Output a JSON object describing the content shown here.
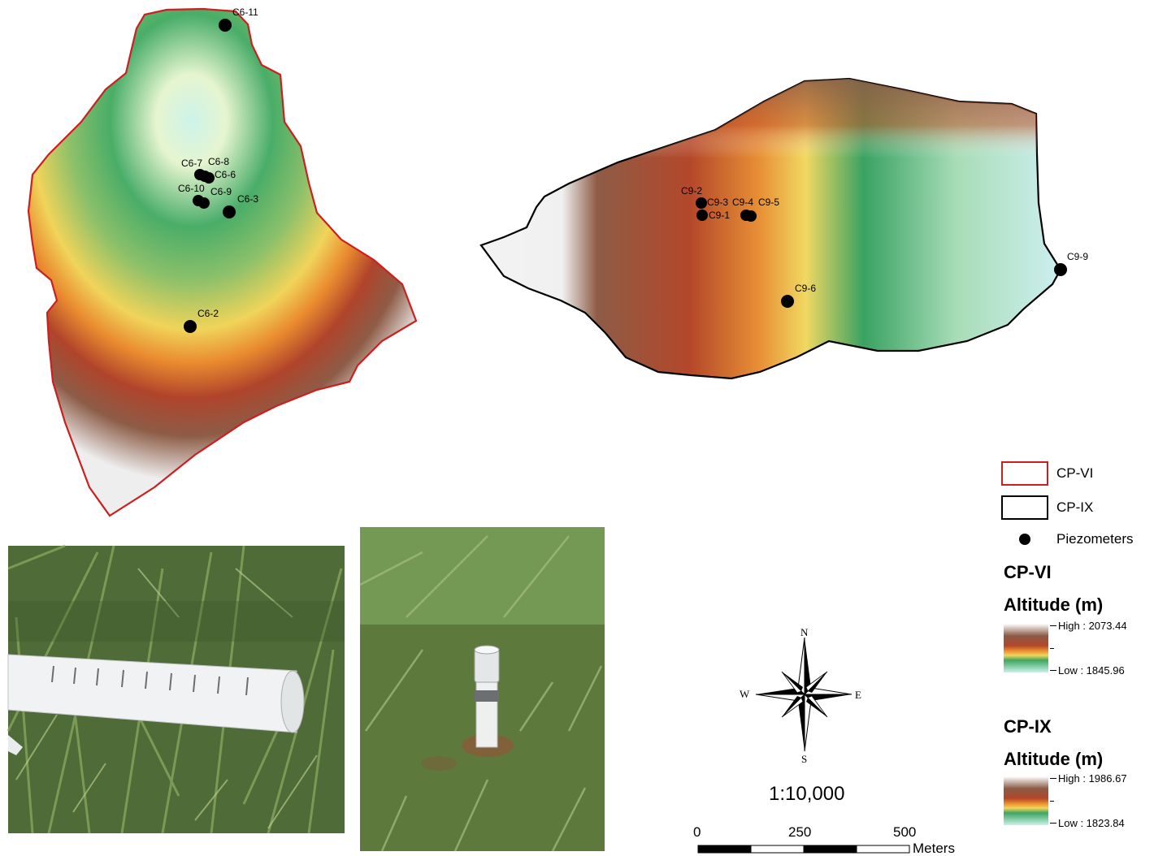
{
  "map": {
    "cp6_points": [
      {
        "id": "C6-11",
        "label": "C6-11"
      },
      {
        "id": "C6-7",
        "label": "C6-7"
      },
      {
        "id": "C6-8",
        "label": "C6-8"
      },
      {
        "id": "C6-6",
        "label": "C6-6"
      },
      {
        "id": "C6-10",
        "label": "C6-10"
      },
      {
        "id": "C6-9",
        "label": "C6-9"
      },
      {
        "id": "C6-3",
        "label": "C6-3"
      },
      {
        "id": "C6-2",
        "label": "C6-2"
      }
    ],
    "cp9_points": [
      {
        "id": "C9-2",
        "label": "C9-2"
      },
      {
        "id": "C9-3",
        "label": "C9-3"
      },
      {
        "id": "C9-4",
        "label": "C9-4"
      },
      {
        "id": "C9-5",
        "label": "C9-5"
      },
      {
        "id": "C9-1",
        "label": "C9-1"
      },
      {
        "id": "C9-6",
        "label": "C9-6"
      },
      {
        "id": "C9-9",
        "label": "C9-9"
      }
    ],
    "colors": {
      "cp6_outline": "#cc1f1f",
      "cp9_outline": "#000000",
      "ramp": [
        "#f4f4f4",
        "#8b5a45",
        "#b3462a",
        "#e88a2e",
        "#f2d65a",
        "#3fa561",
        "#bfeee0"
      ]
    }
  },
  "compass": {
    "n": "N",
    "s": "S",
    "e": "E",
    "w": "W"
  },
  "scale": {
    "ratio": "1:10,000",
    "ticks": [
      "0",
      "250",
      "500"
    ],
    "unit": "Meters"
  },
  "legend": {
    "cp6_boundary": "CP-VI",
    "cp9_boundary": "CP-IX",
    "piezometers": "Piezometers",
    "cp6_title": "CP-VI",
    "cp6_subtitle": "Altitude (m)",
    "cp6_high": "High : 2073.44",
    "cp6_low": "Low : 1845.96",
    "cp9_title": "CP-IX",
    "cp9_subtitle": "Altitude (m)",
    "cp9_high": "High : 1986.67",
    "cp9_low": "Low : 1823.84"
  },
  "photos": [
    {
      "id": "slotted-pipe",
      "desc_icon": "slotted-pvc-pipe-photo"
    },
    {
      "id": "installed-piezometer",
      "desc_icon": "installed-piezometer-photo"
    }
  ]
}
